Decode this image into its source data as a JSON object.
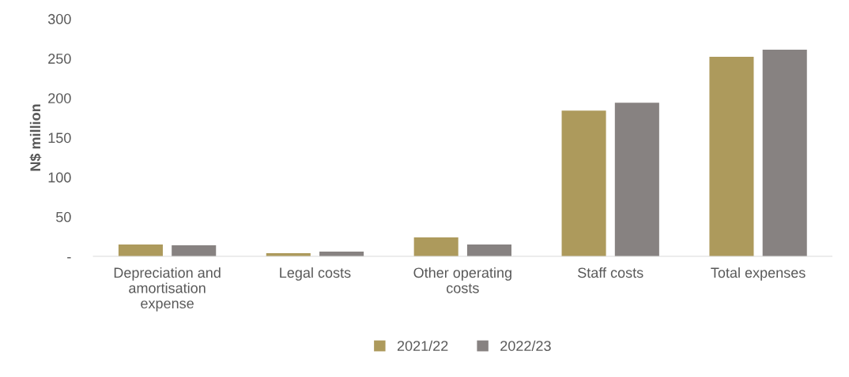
{
  "chart_data": {
    "type": "bar",
    "ylabel": "N$ million",
    "categories": [
      "Depreciation and\namortisation\nexpense",
      "Legal costs",
      "Other operating\ncosts",
      "Staff costs",
      "Total expenses"
    ],
    "series": [
      {
        "name": "2021/22",
        "color": "#ad9a5c",
        "values": [
          15,
          4,
          24,
          184,
          252
        ]
      },
      {
        "name": "2022/23",
        "color": "#878281",
        "values": [
          14,
          6,
          15,
          194,
          261
        ]
      }
    ],
    "ylim": [
      0,
      300
    ],
    "yticks": [
      {
        "value": 0,
        "label": "-"
      },
      50,
      100,
      150,
      200,
      250,
      300
    ],
    "grid": false,
    "legend": "bottom"
  }
}
